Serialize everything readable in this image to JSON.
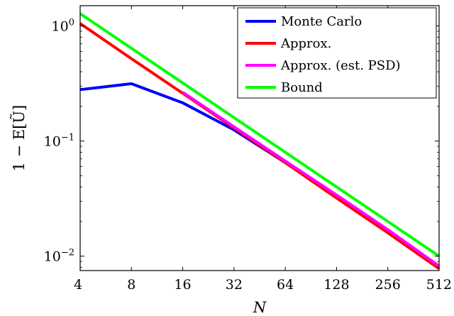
{
  "chart_data": {
    "type": "line",
    "x_scale": "log2",
    "y_scale": "log10",
    "xlabel": "N",
    "ylabel": "1 − E[Ũ]",
    "xticks": [
      "4",
      "8",
      "16",
      "32",
      "64",
      "128",
      "256",
      "512"
    ],
    "xtick_values": [
      4,
      8,
      16,
      32,
      64,
      128,
      256,
      512
    ],
    "yticks": [
      {
        "value": 0.01,
        "base": "10",
        "exp": "−2"
      },
      {
        "value": 0.1,
        "base": "10",
        "exp": "−1"
      },
      {
        "value": 1,
        "base": "10",
        "exp": "0"
      }
    ],
    "xlim": [
      4,
      512
    ],
    "ylim": [
      0.0075,
      1.5
    ],
    "grid": false,
    "legend_position": "top-right",
    "series": [
      {
        "name": "Monte Carlo",
        "color": "#0000ff",
        "x": [
          4,
          8,
          16,
          32,
          64,
          128,
          256,
          512
        ],
        "y": [
          0.28,
          0.315,
          0.215,
          0.125,
          0.065,
          0.033,
          0.016,
          0.0078
        ]
      },
      {
        "name": "Approx.",
        "color": "#ff0000",
        "x": [
          4,
          8,
          16,
          32,
          64,
          128,
          256,
          512
        ],
        "y": [
          1.05,
          0.52,
          0.26,
          0.13,
          0.065,
          0.032,
          0.016,
          0.0078
        ]
      },
      {
        "name": "Approx. (est. PSD)",
        "color": "#ff00ff",
        "x": [
          16,
          32,
          64,
          128,
          256,
          512
        ],
        "y": [
          0.265,
          0.133,
          0.067,
          0.034,
          0.017,
          0.0082
        ]
      },
      {
        "name": "Bound",
        "color": "#00ff00",
        "x": [
          4,
          8,
          16,
          32,
          64,
          128,
          256,
          512
        ],
        "y": [
          1.28,
          0.64,
          0.32,
          0.16,
          0.08,
          0.04,
          0.02,
          0.01
        ]
      }
    ]
  }
}
